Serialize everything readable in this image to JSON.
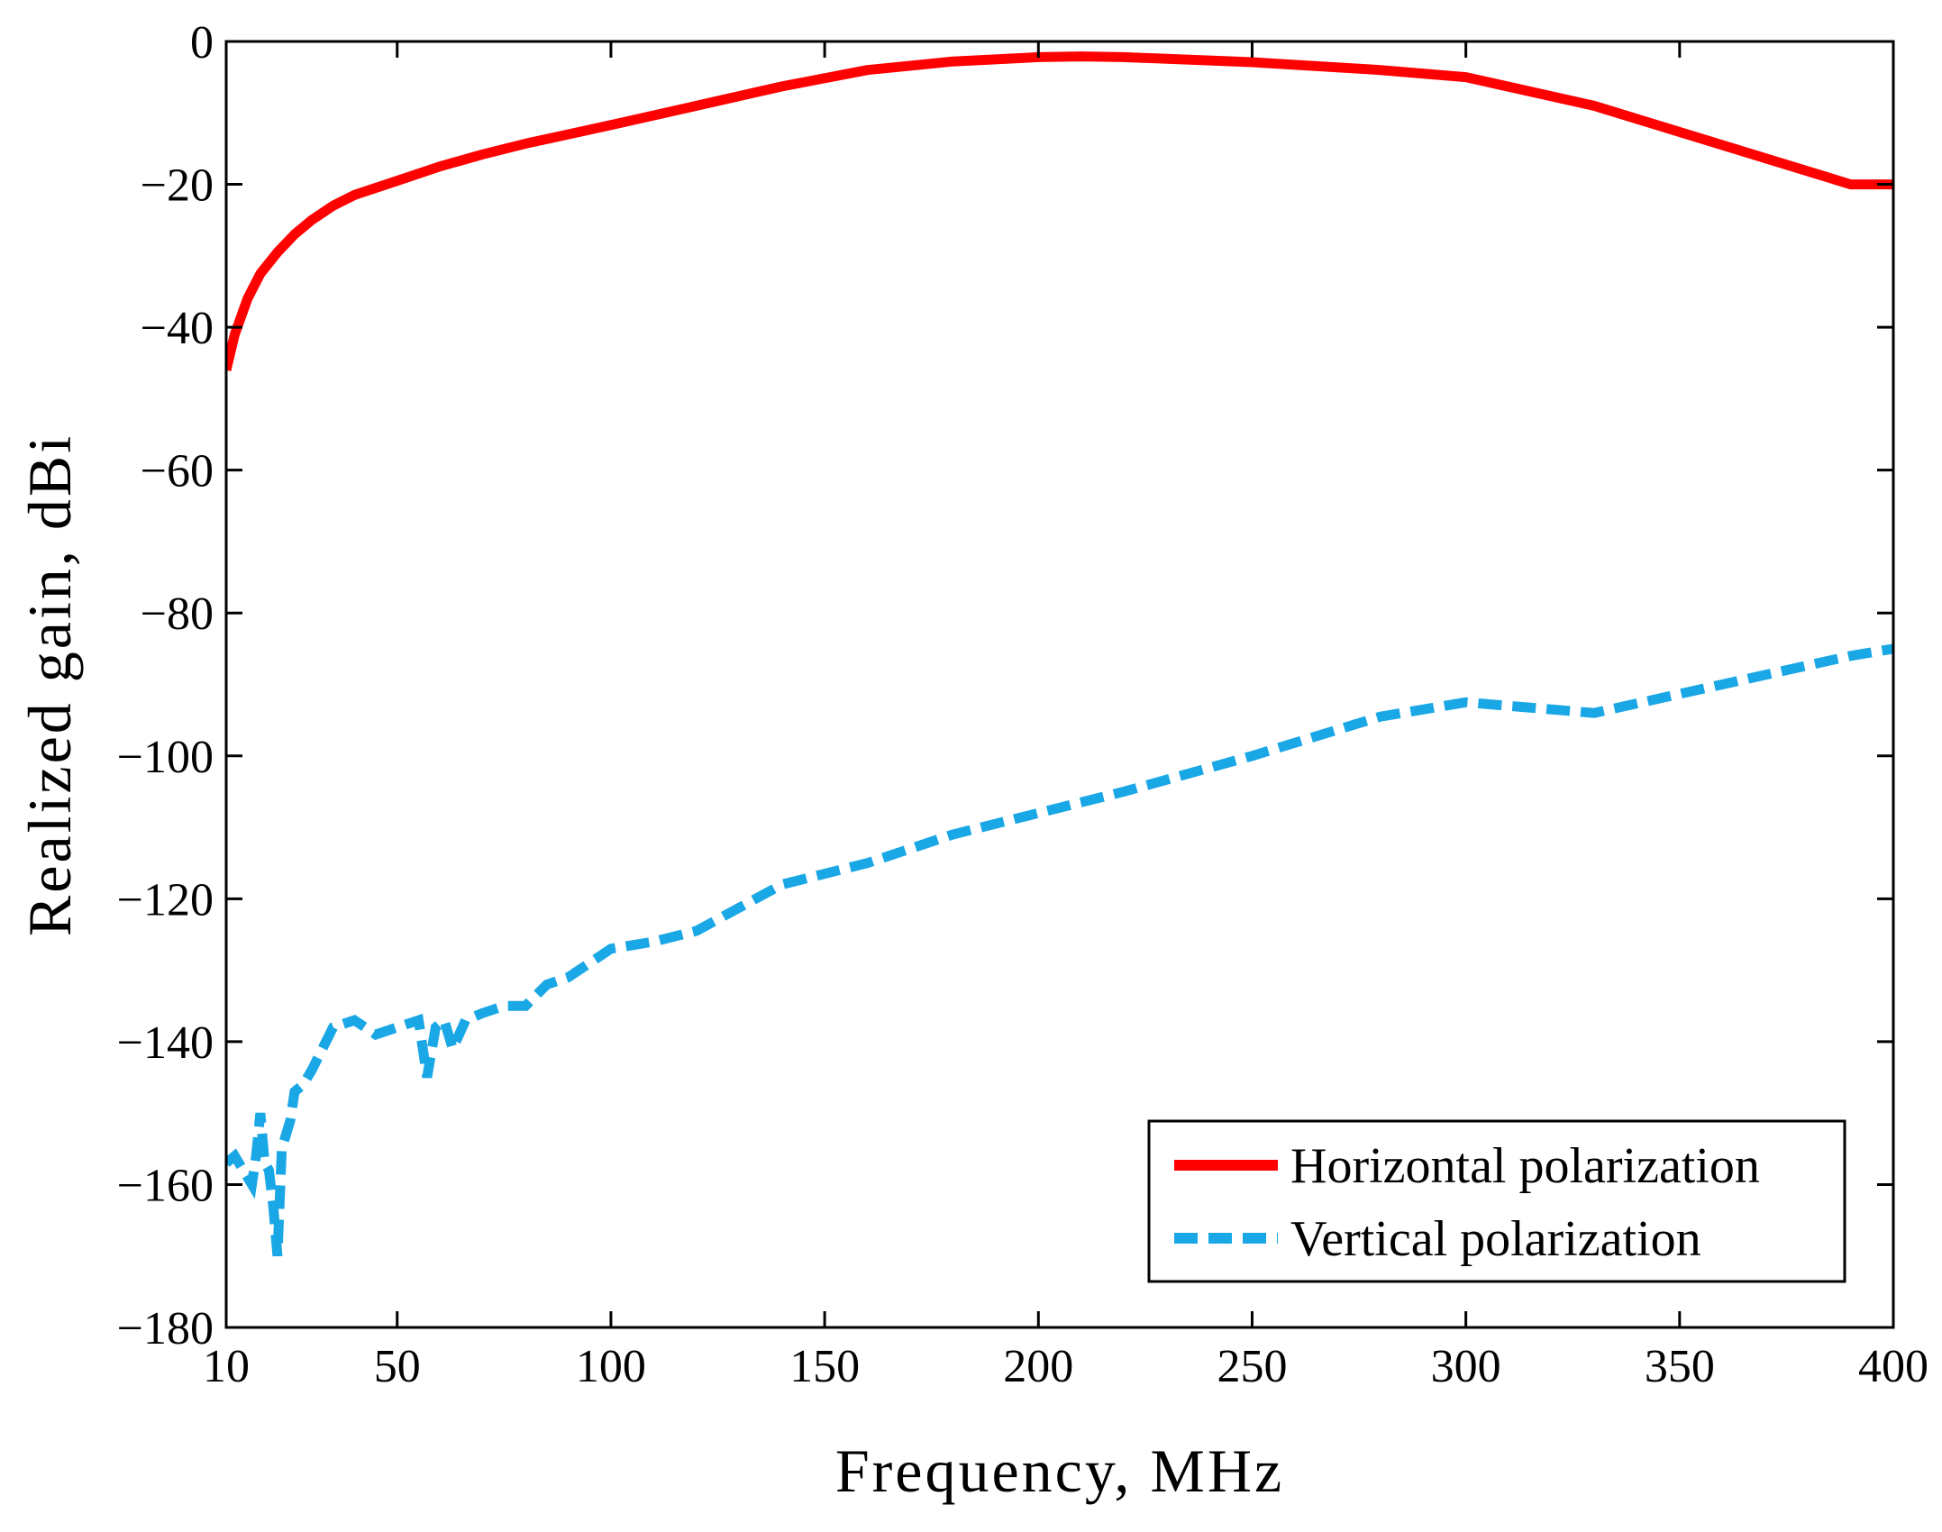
{
  "chart_data": {
    "type": "line",
    "title": "",
    "xlabel": "Frequency, MHz",
    "ylabel": "Realized gain, dBi",
    "xlim": [
      10,
      400
    ],
    "ylim": [
      -180,
      0
    ],
    "xticks": [
      10,
      50,
      100,
      150,
      200,
      250,
      300,
      350,
      400
    ],
    "yticks": [
      0,
      -20,
      -40,
      -60,
      -80,
      -100,
      -120,
      -140,
      -160,
      -180
    ],
    "xtick_labels": [
      "10",
      "50",
      "100",
      "150",
      "200",
      "250",
      "300",
      "350",
      "400"
    ],
    "ytick_labels": [
      "0",
      "−20",
      "−40",
      "−60",
      "−80",
      "−100",
      "−120",
      "−140",
      "−160",
      "−180"
    ],
    "grid": false,
    "legend_position": "bottom-right",
    "series": [
      {
        "name": "Horizontal polarization",
        "color": "#ff0000",
        "style": "solid",
        "x": [
          10,
          12,
          15,
          18,
          22,
          26,
          30,
          35,
          40,
          45,
          50,
          60,
          70,
          80,
          90,
          100,
          120,
          140,
          160,
          180,
          200,
          210,
          220,
          250,
          280,
          300,
          330,
          360,
          390,
          400
        ],
        "y": [
          -46,
          -41,
          -36,
          -32.5,
          -29.5,
          -27,
          -25,
          -23,
          -21.5,
          -20.5,
          -19.5,
          -17.5,
          -15.8,
          -14.3,
          -13,
          -11.7,
          -9,
          -6.3,
          -4,
          -2.8,
          -2.2,
          -2.1,
          -2.2,
          -2.9,
          -4,
          -5,
          -9,
          -14.5,
          -20,
          -20
        ]
      },
      {
        "name": "Vertical polarization",
        "color": "#1aa7e6",
        "style": "dashed",
        "x": [
          10,
          12,
          14,
          16,
          17,
          18,
          19,
          20,
          21,
          22,
          23,
          24,
          25,
          26,
          28,
          30,
          35,
          40,
          45,
          50,
          55,
          57,
          59,
          61,
          63,
          66,
          70,
          75,
          80,
          85,
          90,
          95,
          100,
          110,
          120,
          140,
          160,
          180,
          200,
          220,
          250,
          280,
          300,
          330,
          360,
          390,
          400
        ],
        "y": [
          -157,
          -156,
          -158,
          -160,
          -156,
          -150,
          -157,
          -158,
          -163,
          -170,
          -155,
          -153,
          -151,
          -147,
          -146,
          -144,
          -138,
          -137,
          -139,
          -138,
          -137,
          -145,
          -138,
          -137,
          -141,
          -137,
          -136,
          -135,
          -135,
          -132,
          -131,
          -129,
          -127,
          -126,
          -124.5,
          -118,
          -115,
          -111,
          -108,
          -105,
          -100,
          -94.5,
          -92.5,
          -94,
          -90,
          -86,
          -85
        ]
      }
    ]
  }
}
